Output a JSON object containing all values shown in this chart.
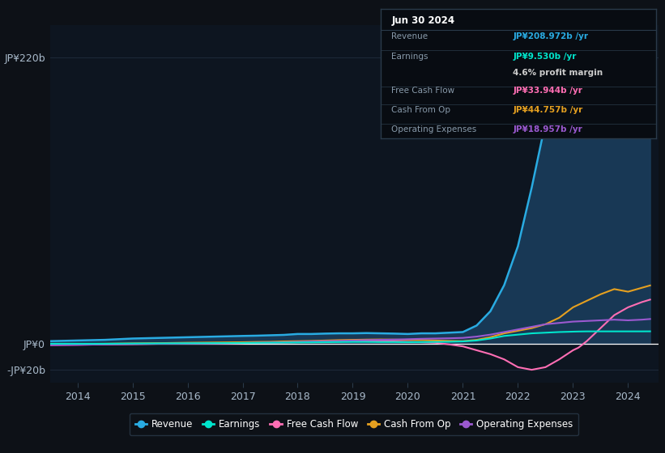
{
  "background_color": "#0d1117",
  "plot_bg_color": "#0d1520",
  "grid_color": "#1e2a3a",
  "zero_line_color": "#ffffff",
  "ylim": [
    -30,
    245
  ],
  "ytick_vals": [
    -20,
    0,
    220
  ],
  "ytick_labels": [
    "-JP¥20b",
    "JP¥0",
    "JP¥220b"
  ],
  "x_years": [
    2013.5,
    2014.0,
    2014.5,
    2015.0,
    2015.5,
    2016.0,
    2016.5,
    2017.0,
    2017.25,
    2017.5,
    2017.75,
    2018.0,
    2018.25,
    2018.5,
    2018.75,
    2019.0,
    2019.25,
    2019.5,
    2019.75,
    2020.0,
    2020.25,
    2020.5,
    2020.75,
    2021.0,
    2021.25,
    2021.5,
    2021.75,
    2022.0,
    2022.25,
    2022.5,
    2022.75,
    2023.0,
    2023.1,
    2023.25,
    2023.5,
    2023.75,
    2024.0,
    2024.25,
    2024.4
  ],
  "revenue": [
    2,
    2.5,
    3,
    4,
    4.5,
    5,
    5.5,
    6,
    6.2,
    6.5,
    6.8,
    7.5,
    7.5,
    7.8,
    8.0,
    8.0,
    8.2,
    8.0,
    7.8,
    7.5,
    8.0,
    8.0,
    8.5,
    9.0,
    14,
    25,
    45,
    75,
    120,
    170,
    210,
    240,
    240,
    235,
    220,
    210,
    205,
    208,
    209
  ],
  "earnings": [
    0,
    0,
    0,
    0.2,
    0.3,
    0.4,
    0.5,
    0.6,
    0.7,
    0.8,
    0.9,
    1.0,
    1.1,
    1.2,
    1.3,
    1.4,
    1.4,
    1.3,
    1.3,
    1.2,
    1.3,
    1.4,
    1.5,
    1.8,
    2.5,
    4.0,
    6.0,
    7.0,
    8.0,
    8.5,
    9.0,
    9.3,
    9.4,
    9.5,
    9.5,
    9.5,
    9.5,
    9.5,
    9.53
  ],
  "free_cash_flow": [
    -1,
    -0.8,
    -0.5,
    -0.3,
    0,
    0.2,
    0.3,
    0.5,
    0.7,
    0.8,
    1.0,
    1.2,
    1.5,
    1.8,
    2.0,
    2.2,
    2.3,
    2.0,
    1.8,
    1.5,
    1.2,
    0.8,
    -0.5,
    -2,
    -5,
    -8,
    -12,
    -18,
    -20,
    -18,
    -12,
    -5,
    -3,
    2,
    12,
    22,
    28,
    32,
    33.9
  ],
  "cash_from_op": [
    -0.5,
    -0.2,
    0,
    0.3,
    0.5,
    0.8,
    1.0,
    1.2,
    1.4,
    1.5,
    1.8,
    2.0,
    2.2,
    2.5,
    2.8,
    3.0,
    3.2,
    3.3,
    3.2,
    3.0,
    2.8,
    2.5,
    2.2,
    2.0,
    3.0,
    5.0,
    8.0,
    10,
    12,
    15,
    20,
    28,
    30,
    33,
    38,
    42,
    40,
    43,
    44.8
  ],
  "operating_expenses": [
    -1,
    -0.8,
    -0.5,
    -0.2,
    0,
    0.2,
    0.4,
    0.6,
    0.8,
    1.0,
    1.2,
    1.5,
    1.8,
    2.0,
    2.2,
    2.5,
    2.8,
    3.0,
    3.2,
    3.5,
    3.8,
    4.0,
    4.2,
    4.5,
    5.5,
    7.0,
    9.0,
    11,
    13,
    15,
    16,
    17,
    17.2,
    17.5,
    18,
    18.5,
    18,
    18.5,
    19.0
  ],
  "revenue_color": "#29abe2",
  "revenue_fill": "#1a3d5c",
  "earnings_color": "#00e5cc",
  "fcf_color": "#ff6eb4",
  "cop_color": "#e5a020",
  "opex_color": "#9b59d0",
  "tooltip_bg": "#080c12",
  "tooltip_border": "#2a3a4a",
  "tooltip_title": "Jun 30 2024",
  "tooltip_rows": [
    {
      "label": "Revenue",
      "value": "JP¥208.972b /yr",
      "color": "#29abe2",
      "separator_after": false
    },
    {
      "label": "Earnings",
      "value": "JP¥9.530b /yr",
      "color": "#00e5cc",
      "separator_after": false
    },
    {
      "label": "",
      "value": "4.6% profit margin",
      "color": "#dddddd",
      "separator_after": true
    },
    {
      "label": "Free Cash Flow",
      "value": "JP¥33.944b /yr",
      "color": "#ff6eb4",
      "separator_after": true
    },
    {
      "label": "Cash From Op",
      "value": "JP¥44.757b /yr",
      "color": "#e5a020",
      "separator_after": true
    },
    {
      "label": "Operating Expenses",
      "value": "JP¥18.957b /yr",
      "color": "#9b59d0",
      "separator_after": false
    }
  ],
  "legend_items": [
    {
      "label": "Revenue",
      "color": "#29abe2"
    },
    {
      "label": "Earnings",
      "color": "#00e5cc"
    },
    {
      "label": "Free Cash Flow",
      "color": "#ff6eb4"
    },
    {
      "label": "Cash From Op",
      "color": "#e5a020"
    },
    {
      "label": "Operating Expenses",
      "color": "#9b59d0"
    }
  ],
  "xtick_years": [
    2014,
    2015,
    2016,
    2017,
    2018,
    2019,
    2020,
    2021,
    2022,
    2023,
    2024
  ],
  "xmin": 2013.5,
  "xmax": 2024.55
}
